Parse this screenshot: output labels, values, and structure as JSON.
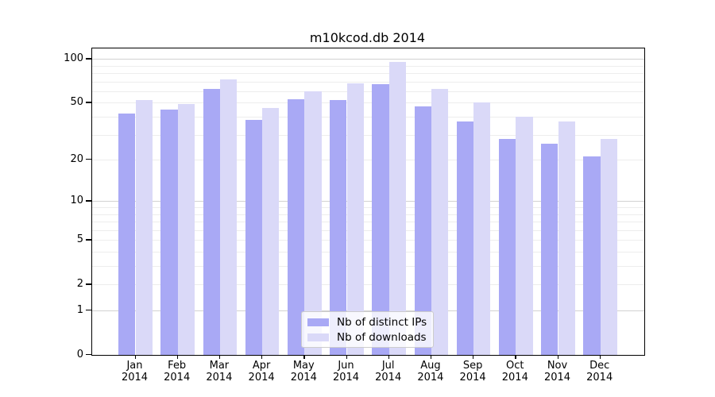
{
  "title": "m10kcod.db 2014",
  "colors": {
    "distinct_ips": "#a9a9f5",
    "downloads": "#dad9f8",
    "grid_minor": "#ededed",
    "grid_major": "#d2d2d2",
    "axis": "#000000",
    "legend_border": "#cccccc"
  },
  "legend": {
    "items": [
      {
        "label": "Nb of distinct IPs",
        "color_key": "distinct_ips"
      },
      {
        "label": "Nb of downloads",
        "color_key": "downloads"
      }
    ]
  },
  "chart_data": {
    "type": "bar",
    "title": "m10kcod.db 2014",
    "xlabel": "",
    "ylabel": "",
    "y_scale": "log1p",
    "ylim": [
      0,
      118
    ],
    "year": "2014",
    "categories": [
      "Jan",
      "Feb",
      "Mar",
      "Apr",
      "May",
      "Jun",
      "Jul",
      "Aug",
      "Sep",
      "Oct",
      "Nov",
      "Dec"
    ],
    "series": [
      {
        "name": "Nb of distinct IPs",
        "values": [
          42,
          45,
          62,
          38,
          53,
          52,
          67,
          47,
          37,
          28,
          26,
          21
        ]
      },
      {
        "name": "Nb of downloads",
        "values": [
          52,
          49,
          72,
          46,
          60,
          68,
          95,
          62,
          50,
          40,
          37,
          28
        ]
      }
    ],
    "y_ticks": [
      100,
      50,
      20,
      10,
      5,
      2,
      1,
      0
    ],
    "grid_values": [
      1,
      2,
      3,
      4,
      5,
      6,
      7,
      8,
      9,
      10,
      20,
      30,
      40,
      50,
      60,
      70,
      80,
      90,
      100
    ],
    "grid_major_values": [
      1,
      10,
      100
    ],
    "legend_position": "lower center",
    "grid": true
  }
}
